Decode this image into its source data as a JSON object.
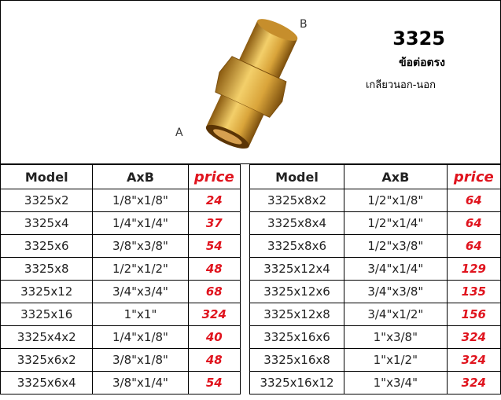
{
  "header": {
    "label_b": "B",
    "label_a": "A",
    "title": "3325",
    "subtitle": "ข้อต่อตรง",
    "description": "เกลียวนอก-นอก"
  },
  "tables": [
    {
      "columns": [
        "Model",
        "AxB",
        "price"
      ],
      "rows": [
        [
          "3325x2",
          "1/8\"x1/8\"",
          24
        ],
        [
          "3325x4",
          "1/4\"x1/4\"",
          37
        ],
        [
          "3325x6",
          "3/8\"x3/8\"",
          54
        ],
        [
          "3325x8",
          "1/2\"x1/2\"",
          48
        ],
        [
          "3325x12",
          "3/4\"x3/4\"",
          68
        ],
        [
          "3325x16",
          "1\"x1\"",
          324
        ],
        [
          "3325x4x2",
          "1/4\"x1/8\"",
          40
        ],
        [
          "3325x6x2",
          "3/8\"x1/8\"",
          48
        ],
        [
          "3325x6x4",
          "3/8\"x1/4\"",
          54
        ]
      ]
    },
    {
      "columns": [
        "Model",
        "AxB",
        "price"
      ],
      "rows": [
        [
          "3325x8x2",
          "1/2\"x1/8\"",
          64
        ],
        [
          "3325x8x4",
          "1/2\"x1/4\"",
          64
        ],
        [
          "3325x8x6",
          "1/2\"x3/8\"",
          64
        ],
        [
          "3325x12x4",
          "3/4\"x1/4\"",
          129
        ],
        [
          "3325x12x6",
          "3/4\"x3/8\"",
          135
        ],
        [
          "3325x12x8",
          "3/4\"x1/2\"",
          156
        ],
        [
          "3325x16x6",
          "1\"x3/8\"",
          324
        ],
        [
          "3325x16x8",
          "1\"x1/2\"",
          324
        ],
        [
          "3325x16x12",
          "1\"x3/4\"",
          324
        ]
      ]
    }
  ]
}
